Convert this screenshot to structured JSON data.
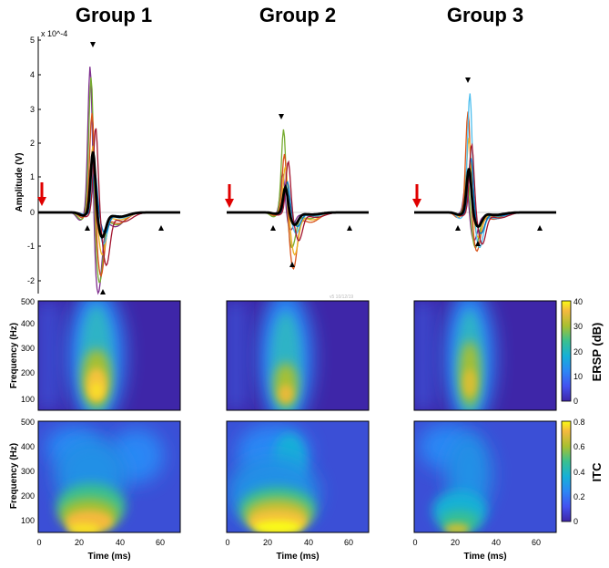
{
  "chart_data": {
    "type": "line",
    "groups": [
      "Group 1",
      "Group 2",
      "Group 3"
    ],
    "erp": {
      "ylabel": "Amplitude (V)",
      "exponent_label": "x 10^-4",
      "yticks": [
        "5",
        "4",
        "3",
        "2",
        "1",
        "0",
        "-1",
        "-2"
      ],
      "ylim": [
        -2.3,
        5
      ],
      "xlim": [
        0,
        70
      ],
      "series_colors": [
        "#7E2F8E",
        "#77AC30",
        "#D95319",
        "#EDB120",
        "#4DBEEE",
        "#0072BD",
        "#A2142F",
        "#000000"
      ],
      "mean_line": "mean",
      "peaks": [
        {
          "group": "Group 1",
          "peaks_e-4": [
            4.5,
            4.1,
            3.0,
            2.0,
            1.5,
            1.2,
            2.5
          ],
          "troughs_e-4": [
            -2.3,
            -2.0,
            -1.8,
            -1.2,
            -0.9,
            -0.6,
            -1.5
          ],
          "mean_peak_e-4": 1.8,
          "mean_trough_e-4": -0.7
        },
        {
          "group": "Group 2",
          "peaks_e-4": [
            1.2,
            2.5,
            1.8,
            1.4,
            0.8,
            0.9,
            1.5
          ],
          "troughs_e-4": [
            -0.5,
            -1.0,
            -1.6,
            -1.2,
            -0.6,
            -0.4,
            -0.8
          ],
          "mean_peak_e-4": 0.75,
          "mean_trough_e-4": -0.35
        },
        {
          "group": "Group 3",
          "peaks_e-4": [
            1.0,
            1.3,
            3.0,
            2.2,
            3.5,
            1.6,
            2.0
          ],
          "troughs_e-4": [
            -0.8,
            -1.0,
            -1.1,
            -0.7,
            -1.0,
            -0.6,
            -0.9
          ],
          "mean_peak_e-4": 1.3,
          "mean_trough_e-4": -0.4
        }
      ]
    },
    "ersp": {
      "ylabel": "Frequency (Hz)",
      "colorbar_label": "ERSP (dB)",
      "colorbar_ticks": [
        "0",
        "10",
        "20",
        "30",
        "40"
      ],
      "yticks": [
        "500",
        "400",
        "300",
        "200",
        "100"
      ]
    },
    "itc": {
      "ylabel": "Frequency (Hz)",
      "colorbar_label": "ITC",
      "colorbar_ticks": [
        "0",
        "0.2",
        "0.4",
        "0.6",
        "0.8"
      ],
      "yticks": [
        "500",
        "400",
        "300",
        "200",
        "100"
      ]
    },
    "xlabel": "Time (ms)",
    "xticks": [
      "0",
      "20",
      "40",
      "60"
    ]
  }
}
